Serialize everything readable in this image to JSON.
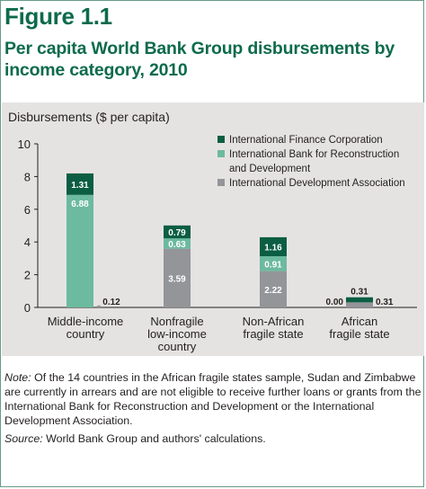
{
  "figure": {
    "number": "Figure 1.1",
    "title": "Per capita World Bank Group disbursements by income category, 2010",
    "note_label": "Note:",
    "note_text": "Of the 14 countries in the African fragile states sample, Sudan and Zimbabwe are currently in arrears and are not eligible to receive further loans or grants from the International Bank for Reconstruction and Development or the International Development Association.",
    "source_label": "Source:",
    "source_text": "World Bank Group and authors' calculations."
  },
  "colors": {
    "ifc": "#0b5e43",
    "ibrd": "#6cbaa0",
    "ida": "#939598",
    "panel": "#e5e3e2",
    "title": "#0d6b4c",
    "label_white": "#ffffff",
    "label_dark": "#231f20"
  },
  "chart_data": {
    "type": "bar",
    "stacked": true,
    "title": "",
    "ylabel": "Disbursements ($ per capita)",
    "xlabel": "",
    "ylim": [
      0,
      10
    ],
    "yticks": [
      0,
      2,
      4,
      6,
      8,
      10
    ],
    "grid": false,
    "legend_position": "top-right",
    "categories": [
      [
        "Middle-income",
        "country"
      ],
      [
        "Nonfragile",
        "low-income",
        "country"
      ],
      [
        "Non-African",
        "fragile state"
      ],
      [
        "African",
        "fragile state"
      ]
    ],
    "series": [
      {
        "name": "International Development Association",
        "key": "ida",
        "values": [
          0.12,
          3.59,
          2.22,
          0.31
        ],
        "labels": [
          "0.12",
          "3.59",
          "2.22",
          "0.31"
        ]
      },
      {
        "name": "International Bank for Reconstruction and Development",
        "legend_lines": [
          "International Bank for Reconstruction",
          "and Development"
        ],
        "key": "ibrd",
        "values": [
          6.88,
          0.63,
          0.91,
          0.0
        ],
        "labels": [
          "6.88",
          "0.63",
          "0.91",
          "0.00"
        ]
      },
      {
        "name": "International Finance Corporation",
        "key": "ifc",
        "values": [
          1.31,
          0.79,
          1.16,
          0.31
        ],
        "labels": [
          "1.31",
          "0.79",
          "1.16",
          "0.31"
        ]
      }
    ],
    "legend_order": [
      "ifc",
      "ibrd",
      "ida"
    ]
  }
}
